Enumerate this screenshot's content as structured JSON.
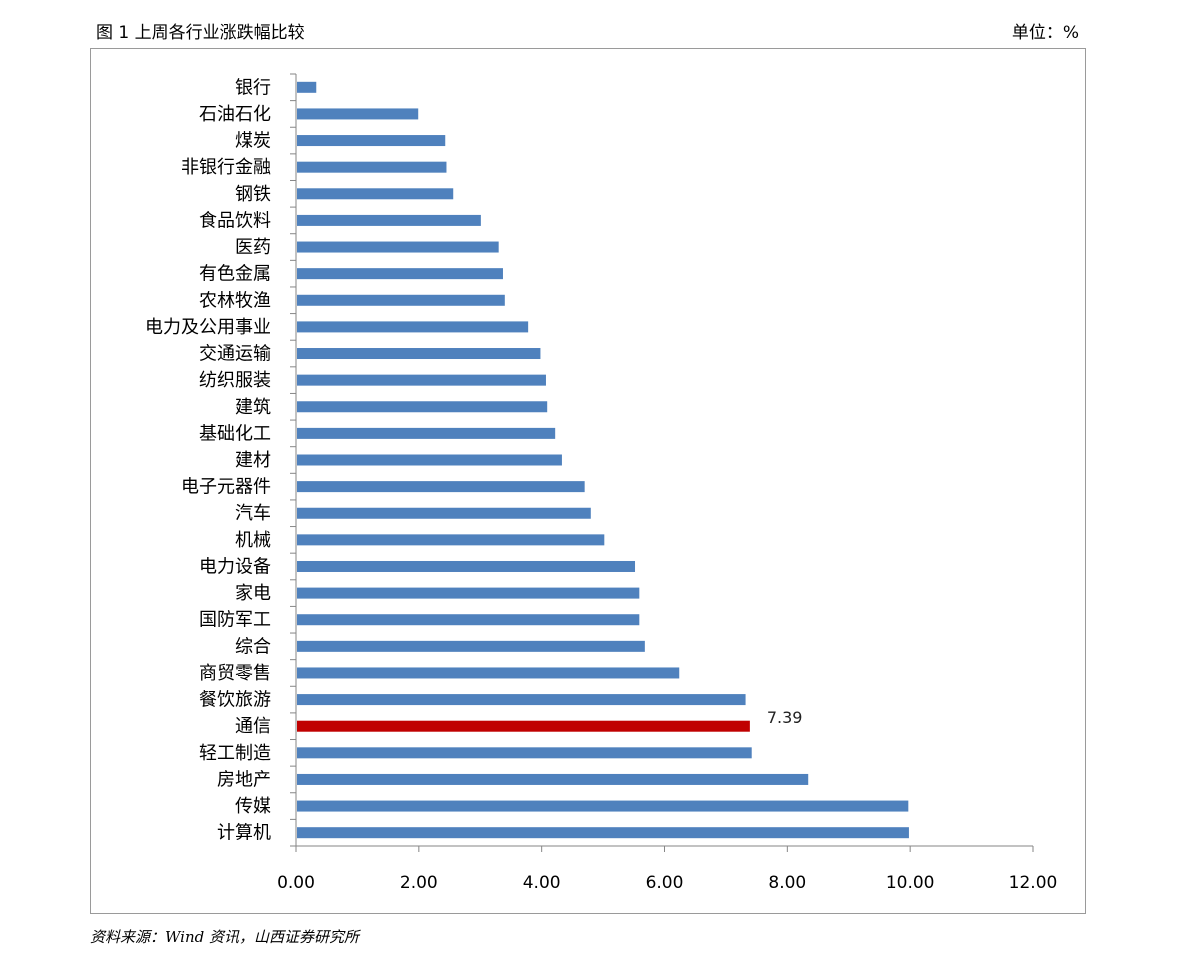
{
  "header": {
    "title": "图 1 上周各行业涨跌幅比较",
    "unit": "单位：%"
  },
  "source": "资料来源：Wind 资讯，山西证券研究所",
  "colors": {
    "bar": "#4f81bd",
    "highlight": "#c00000",
    "axis": "#868686"
  },
  "chart_data": {
    "type": "bar",
    "orientation": "horizontal",
    "title": "上周各行业涨跌幅比较",
    "xlim": [
      0,
      12
    ],
    "ticks": [
      "0.00",
      "2.00",
      "4.00",
      "6.00",
      "8.00",
      "10.00",
      "12.00"
    ],
    "grid": false,
    "legend": "none",
    "categories": [
      "银行",
      "石油石化",
      "煤炭",
      "非银行金融",
      "钢铁",
      "食品饮料",
      "医药",
      "有色金属",
      "农林牧渔",
      "电力及公用事业",
      "交通运输",
      "纺织服装",
      "建筑",
      "基础化工",
      "建材",
      "电子元器件",
      "汽车",
      "机械",
      "电力设备",
      "家电",
      "国防军工",
      "综合",
      "商贸零售",
      "餐饮旅游",
      "通信",
      "轻工制造",
      "房地产",
      "传媒",
      "计算机"
    ],
    "values": [
      0.33,
      1.99,
      2.43,
      2.45,
      2.56,
      3.01,
      3.3,
      3.37,
      3.4,
      3.78,
      3.98,
      4.07,
      4.09,
      4.22,
      4.33,
      4.7,
      4.8,
      5.02,
      5.52,
      5.59,
      5.59,
      5.68,
      6.24,
      7.32,
      7.39,
      7.42,
      8.34,
      9.97,
      9.98
    ],
    "highlight": {
      "category": "通信",
      "label": "7.39"
    }
  }
}
